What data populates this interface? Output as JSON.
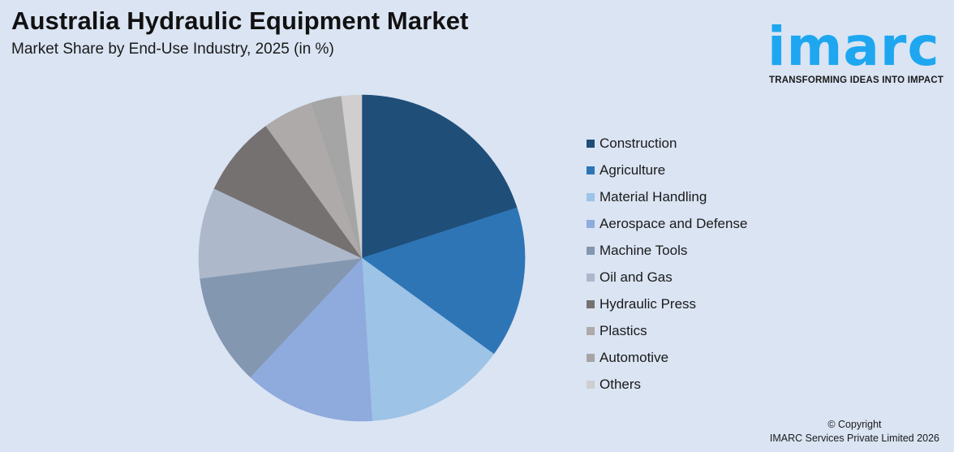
{
  "header": {
    "title": "Australia Hydraulic Equipment Market",
    "subtitle": "Market Share by End-Use Industry, 2025 (in %)"
  },
  "logo": {
    "wordmark": "imarc",
    "tagline": "TRANSFORMING IDEAS INTO IMPACT",
    "color": "#1ea7f0"
  },
  "footer": {
    "copyright_line1": "© Copyright",
    "copyright_line2": "IMARC Services Private Limited 2026"
  },
  "chart_data": {
    "type": "pie",
    "title": "Australia Hydraulic Equipment Market",
    "subtitle": "Market Share by End-Use Industry, 2025 (in %)",
    "start_angle_deg": 0,
    "direction": "clockwise",
    "legend_position": "right",
    "categories": [
      "Construction",
      "Agriculture",
      "Material Handling",
      "Aerospace and Defense",
      "Machine Tools",
      "Oil and Gas",
      "Hydraulic Press",
      "Plastics",
      "Automotive",
      "Others"
    ],
    "values": [
      20,
      15,
      14,
      13,
      11,
      9,
      8,
      5,
      3,
      2
    ],
    "colors": [
      "#1f4e79",
      "#2e75b6",
      "#9dc3e6",
      "#8faadc",
      "#8497b0",
      "#adb9ca",
      "#767171",
      "#aeaaaa",
      "#a5a5a5",
      "#d0cece"
    ],
    "value_labels_shown": false
  }
}
